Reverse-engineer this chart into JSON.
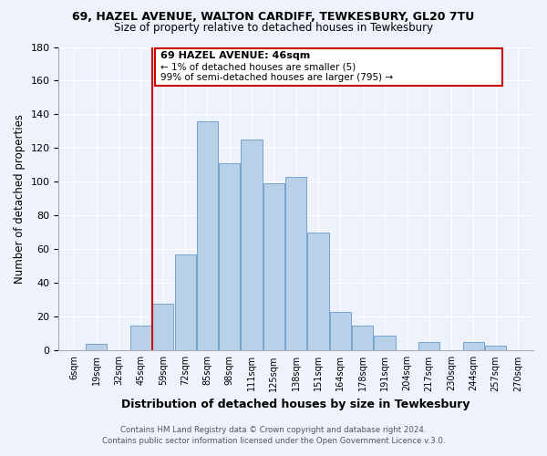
{
  "title": "69, HAZEL AVENUE, WALTON CARDIFF, TEWKESBURY, GL20 7TU",
  "subtitle": "Size of property relative to detached houses in Tewkesbury",
  "xlabel": "Distribution of detached houses by size in Tewkesbury",
  "ylabel": "Number of detached properties",
  "bar_color": "#b8d0e8",
  "bar_edge_color": "#6699cc",
  "background_color": "#eef2fa",
  "grid_color": "#ffffff",
  "annotation_box_color": "#cc0000",
  "annotation_line_color": "#cc0000",
  "tick_labels": [
    "6sqm",
    "19sqm",
    "32sqm",
    "45sqm",
    "59sqm",
    "72sqm",
    "85sqm",
    "98sqm",
    "111sqm",
    "125sqm",
    "138sqm",
    "151sqm",
    "164sqm",
    "178sqm",
    "191sqm",
    "204sqm",
    "217sqm",
    "230sqm",
    "244sqm",
    "257sqm",
    "270sqm"
  ],
  "bar_heights": [
    0,
    4,
    0,
    15,
    28,
    57,
    136,
    111,
    125,
    99,
    103,
    70,
    23,
    15,
    9,
    0,
    5,
    0,
    5,
    3,
    0
  ],
  "ylim": [
    0,
    180
  ],
  "yticks": [
    0,
    20,
    40,
    60,
    80,
    100,
    120,
    140,
    160,
    180
  ],
  "property_line_x": 3.5,
  "annotation_title": "69 HAZEL AVENUE: 46sqm",
  "annotation_line1": "← 1% of detached houses are smaller (5)",
  "annotation_line2": "99% of semi-detached houses are larger (795) →",
  "footer1": "Contains HM Land Registry data © Crown copyright and database right 2024.",
  "footer2": "Contains public sector information licensed under the Open Government Licence v.3.0."
}
